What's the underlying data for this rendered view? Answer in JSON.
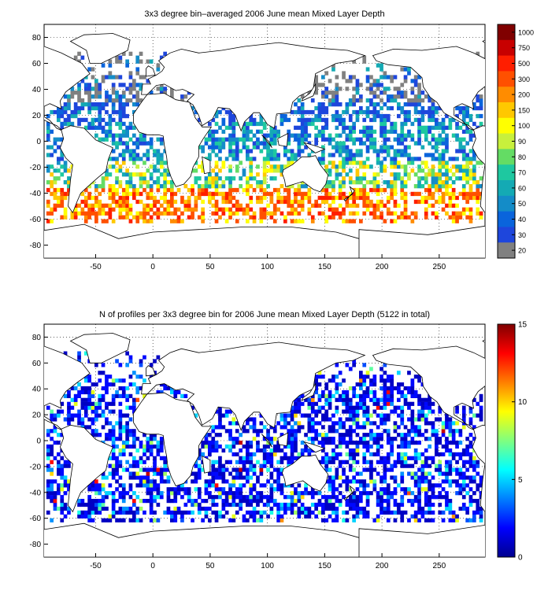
{
  "maps": [
    {
      "title": "3x3 degree bin–averaged 2006 June mean Mixed Layer Depth",
      "x_ticks": [
        "-50",
        "0",
        "50",
        "100",
        "150",
        "200",
        "250"
      ],
      "y_ticks": [
        "80",
        "60",
        "40",
        "20",
        "0",
        "-20",
        "-40",
        "-60",
        "-80"
      ],
      "xlim": [
        -95,
        290
      ],
      "ylim": [
        -90,
        90
      ],
      "colorbar": {
        "labels": [
          "1000",
          "750",
          "500",
          "300",
          "200",
          "150",
          "100",
          "90",
          "80",
          "70",
          "60",
          "50",
          "40",
          "30",
          "20"
        ],
        "colors": [
          "#800000",
          "#c80000",
          "#ff1e00",
          "#ff5000",
          "#ff8c00",
          "#ffc800",
          "#ffff00",
          "#c8f03c",
          "#64dc64",
          "#1ec8a0",
          "#14aab4",
          "#148cc8",
          "#0a64dc",
          "#1e46dc",
          "#808080"
        ]
      }
    },
    {
      "title": "N of profiles per 3x3 degree bin for 2006 June mean Mixed Layer Depth  (5122 in total)",
      "x_ticks": [
        "-50",
        "0",
        "50",
        "100",
        "150",
        "200",
        "250"
      ],
      "y_ticks": [
        "80",
        "60",
        "40",
        "20",
        "0",
        "-20",
        "-40",
        "-60",
        "-80"
      ],
      "xlim": [
        -95,
        290
      ],
      "ylim": [
        -90,
        90
      ],
      "colorbar": {
        "labels": [
          "15",
          "10",
          "5",
          "0"
        ],
        "values": [
          15,
          10,
          5,
          0
        ],
        "range": [
          0,
          15
        ],
        "colormap": "jet"
      }
    }
  ]
}
